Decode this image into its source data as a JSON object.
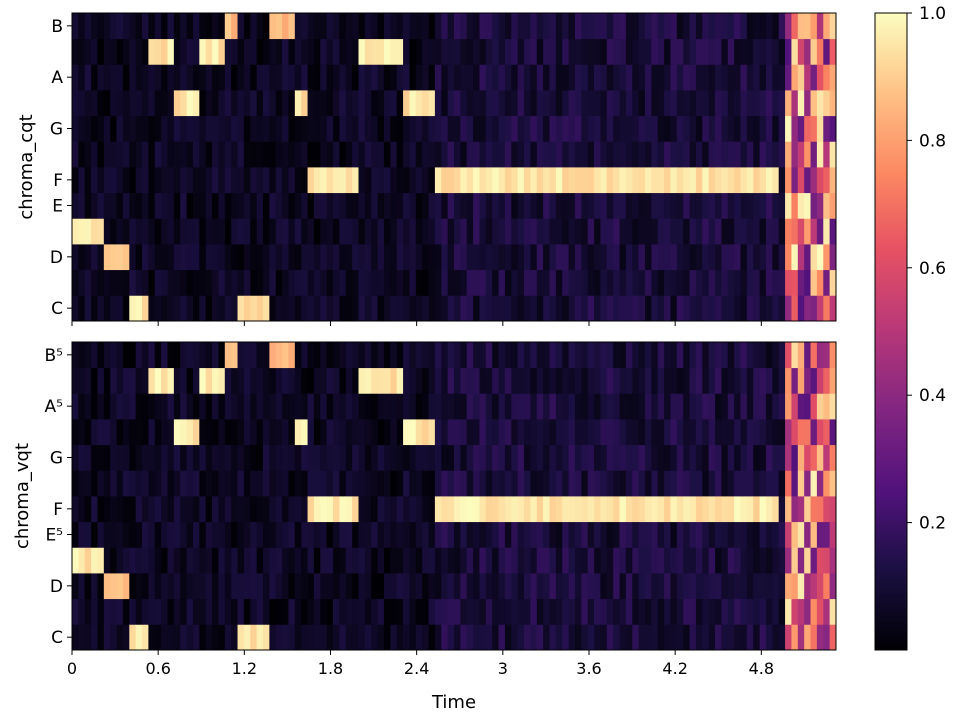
{
  "chart_data": [
    {
      "type": "heatmap",
      "panel": "top",
      "ylabel": "chroma_cqt",
      "xlabel": "",
      "y_ticks": [
        "C",
        "D",
        "E",
        "F",
        "G",
        "A",
        "B"
      ],
      "rows_low_to_high": [
        "C",
        "C#",
        "D",
        "D#",
        "E",
        "F",
        "F#",
        "G",
        "G#",
        "A",
        "A#",
        "B"
      ],
      "xlim": [
        0,
        5.32
      ],
      "vlim": [
        0,
        1
      ],
      "dominant_notes": [
        {
          "t0": 0.0,
          "t1": 0.2,
          "note": "D#",
          "value": 1.0
        },
        {
          "t0": 0.2,
          "t1": 0.38,
          "note": "D",
          "value": 0.9
        },
        {
          "t0": 0.38,
          "t1": 0.55,
          "note": "C",
          "value": 1.0
        },
        {
          "t0": 0.55,
          "t1": 0.7,
          "note": "A#",
          "value": 1.0
        },
        {
          "t0": 0.7,
          "t1": 0.88,
          "note": "G#",
          "value": 1.0
        },
        {
          "t0": 0.88,
          "t1": 1.05,
          "note": "A#",
          "value": 1.0
        },
        {
          "t0": 1.05,
          "t1": 1.15,
          "note": "B",
          "value": 0.9
        },
        {
          "t0": 1.15,
          "t1": 1.38,
          "note": "C",
          "value": 1.0
        },
        {
          "t0": 1.38,
          "t1": 1.55,
          "note": "B",
          "value": 0.9
        },
        {
          "t0": 1.55,
          "t1": 1.65,
          "note": "G#",
          "value": 1.0
        },
        {
          "t0": 1.65,
          "t1": 2.0,
          "note": "F",
          "value": 1.0
        },
        {
          "t0": 2.0,
          "t1": 2.3,
          "note": "A#",
          "value": 1.0
        },
        {
          "t0": 2.3,
          "t1": 2.54,
          "note": "G#",
          "value": 1.0
        },
        {
          "t0": 2.54,
          "t1": 4.9,
          "note": "F",
          "value": 1.0
        }
      ]
    },
    {
      "type": "heatmap",
      "panel": "bottom",
      "ylabel": "chroma_vqt",
      "xlabel": "Time",
      "y_ticks": [
        "C",
        "D",
        "E⁵",
        "F",
        "G",
        "A⁵",
        "B⁵"
      ],
      "rows_low_to_high": [
        "C",
        "C#",
        "D",
        "D#",
        "E",
        "F",
        "F#",
        "G",
        "G#",
        "A",
        "A#",
        "B"
      ],
      "x_ticks": [
        "0",
        "0.6",
        "1.2",
        "1.8",
        "2.4",
        "3",
        "3.6",
        "4.2",
        "4.8"
      ],
      "xlim": [
        0,
        5.32
      ],
      "vlim": [
        0,
        1
      ],
      "dominant_notes": [
        {
          "t0": 0.0,
          "t1": 0.2,
          "note": "D#",
          "value": 1.0
        },
        {
          "t0": 0.2,
          "t1": 0.38,
          "note": "D",
          "value": 0.9
        },
        {
          "t0": 0.38,
          "t1": 0.55,
          "note": "C",
          "value": 1.0
        },
        {
          "t0": 0.55,
          "t1": 0.7,
          "note": "A#",
          "value": 1.0
        },
        {
          "t0": 0.7,
          "t1": 0.88,
          "note": "G#",
          "value": 1.0
        },
        {
          "t0": 0.88,
          "t1": 1.05,
          "note": "A#",
          "value": 1.0
        },
        {
          "t0": 1.05,
          "t1": 1.15,
          "note": "B",
          "value": 0.9
        },
        {
          "t0": 1.15,
          "t1": 1.38,
          "note": "C",
          "value": 1.0
        },
        {
          "t0": 1.38,
          "t1": 1.55,
          "note": "B",
          "value": 0.9
        },
        {
          "t0": 1.55,
          "t1": 1.65,
          "note": "G#",
          "value": 1.0
        },
        {
          "t0": 1.65,
          "t1": 2.0,
          "note": "F",
          "value": 1.0
        },
        {
          "t0": 2.0,
          "t1": 2.3,
          "note": "A#",
          "value": 1.0
        },
        {
          "t0": 2.3,
          "t1": 2.54,
          "note": "G#",
          "value": 1.0
        },
        {
          "t0": 2.54,
          "t1": 4.9,
          "note": "F",
          "value": 1.0
        }
      ]
    }
  ],
  "colorbar": {
    "colormap": "magma",
    "ticks": [
      "0.2",
      "0.4",
      "0.6",
      "0.8",
      "1.0"
    ],
    "tick_values": [
      0.2,
      0.4,
      0.6,
      0.8,
      1.0
    ],
    "vlim": [
      0,
      1
    ]
  }
}
